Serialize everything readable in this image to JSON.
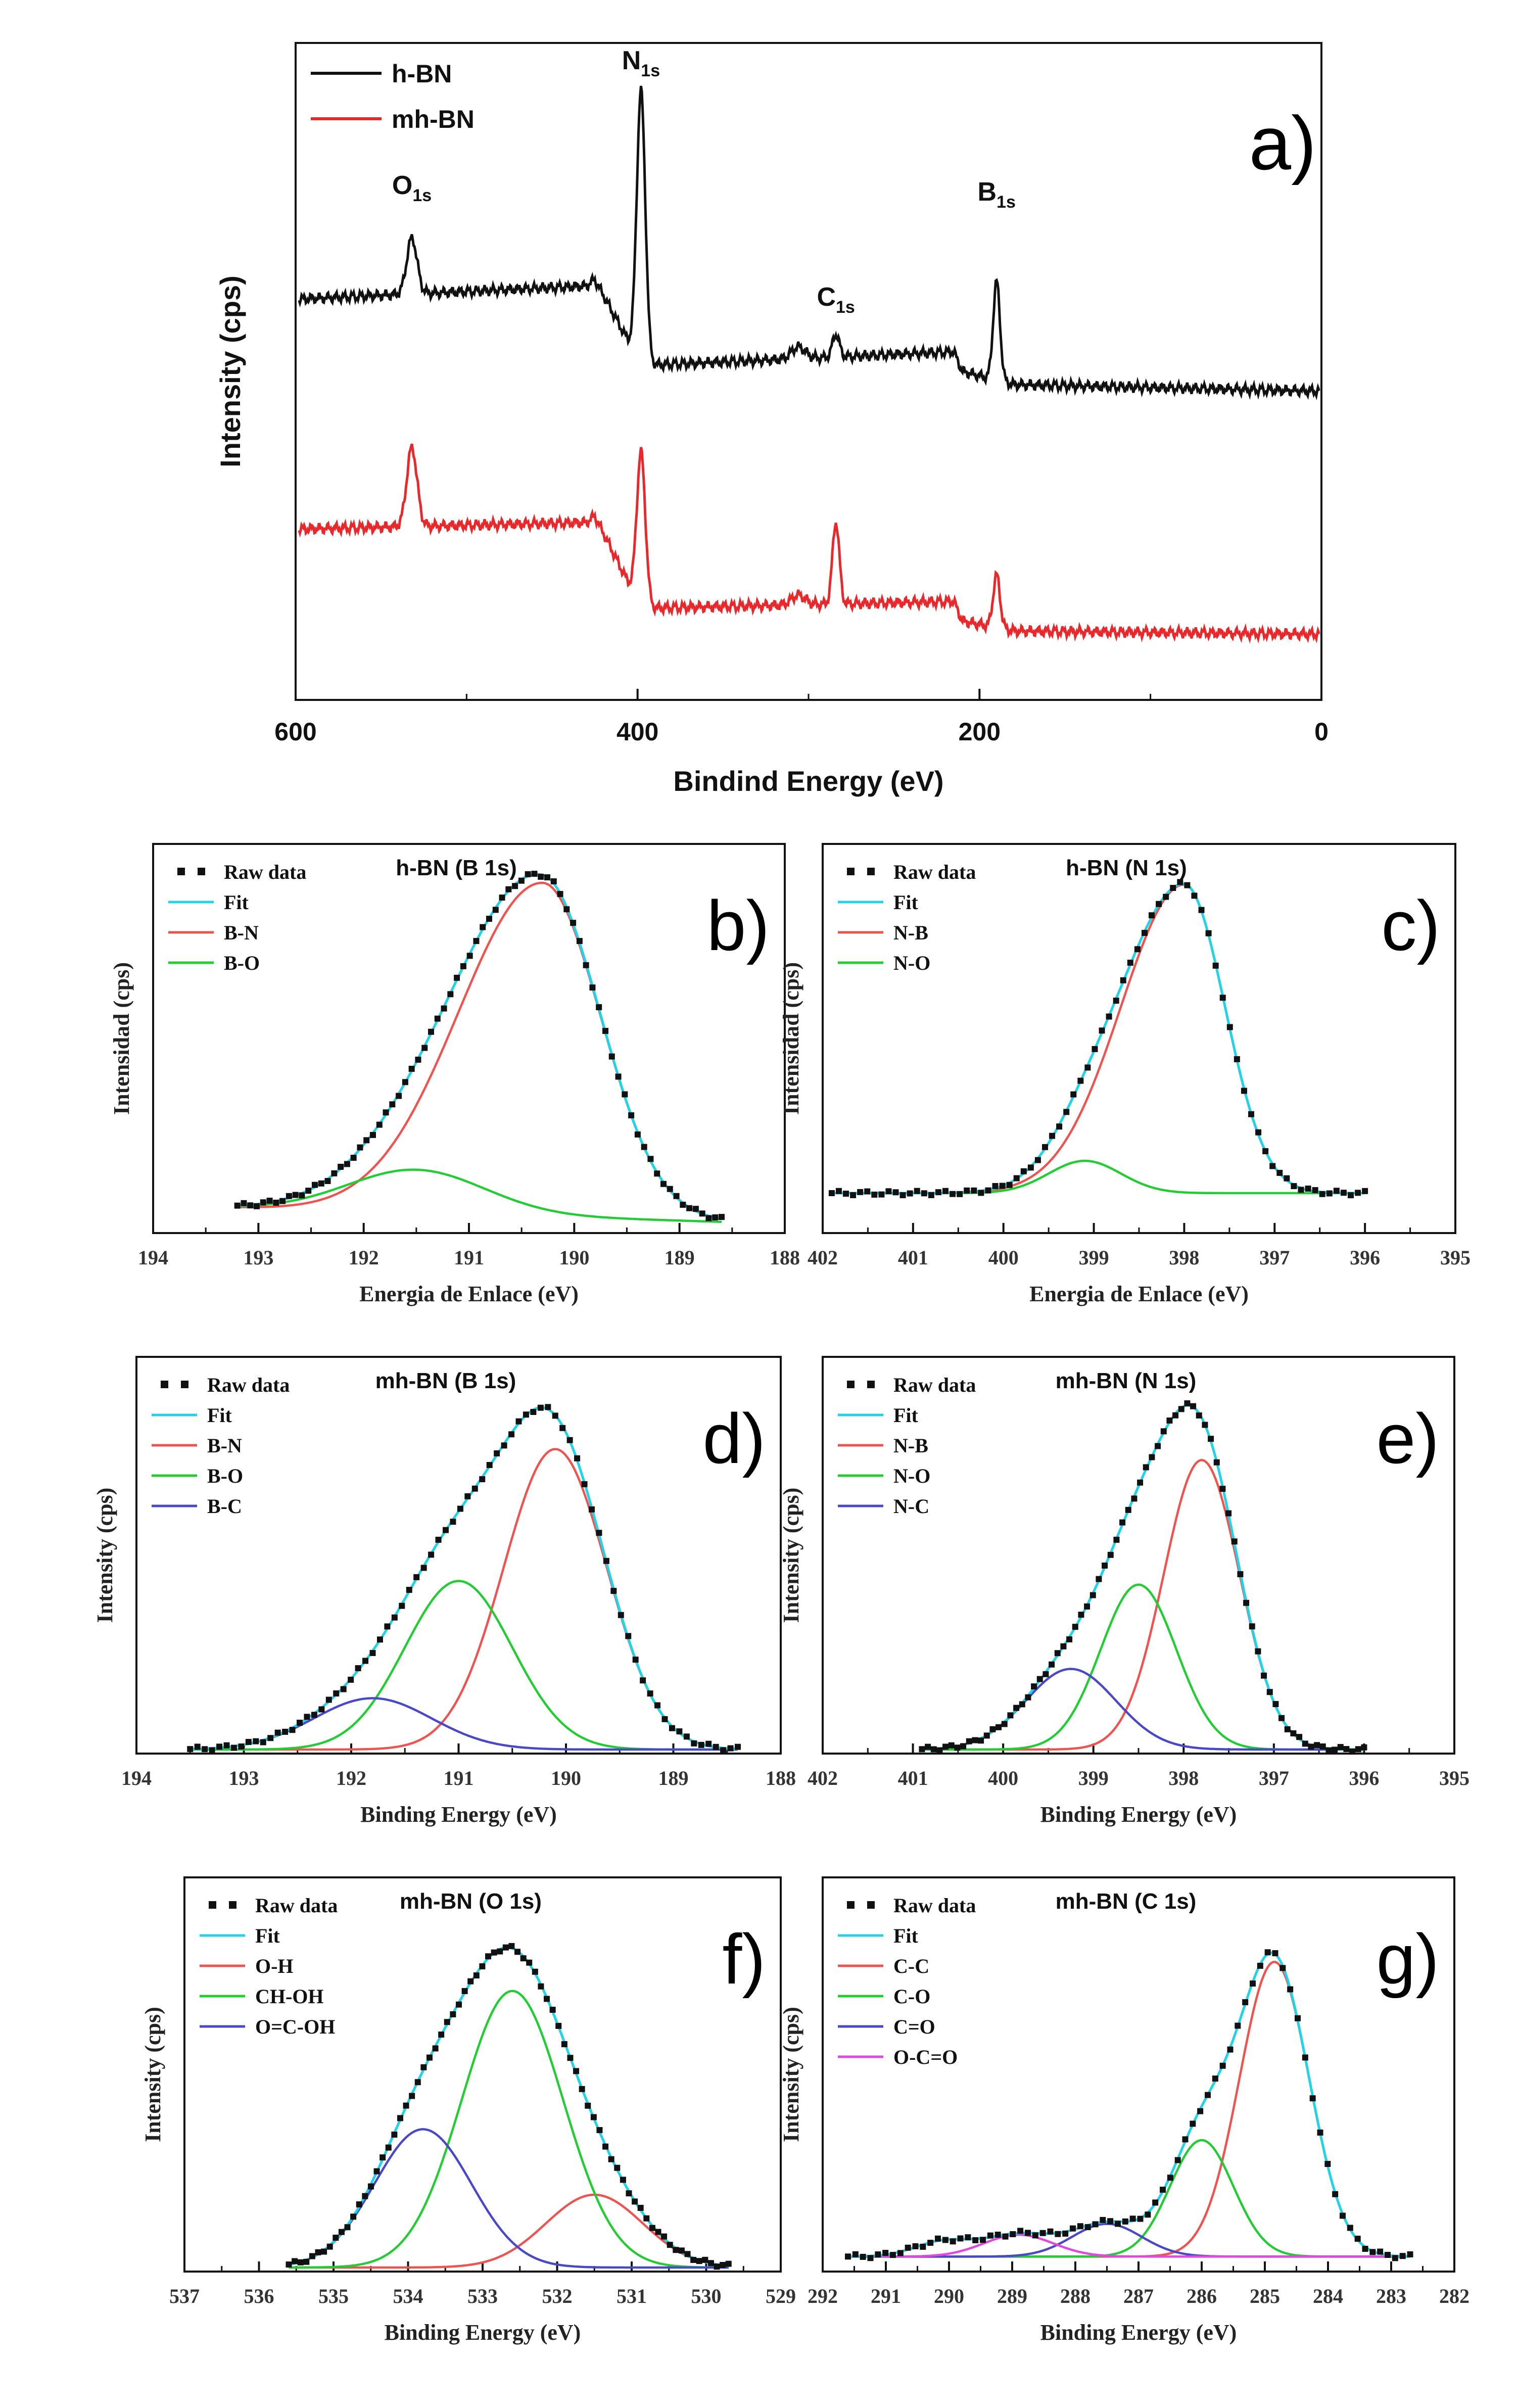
{
  "colors": {
    "black": "#111111",
    "red": "#e8282b",
    "fit": "#22d3e8",
    "comp_red": "#ef5350",
    "comp_green": "#22cc33",
    "comp_blue": "#4848c8",
    "comp_magenta": "#e048e0"
  },
  "chart_data": [
    {
      "id": "a",
      "type": "line",
      "panel_label": "a)",
      "xlabel": "Bindind Energy (eV)",
      "ylabel": "Intensity (cps)",
      "xlim": [
        600,
        0
      ],
      "xticks": [
        600,
        400,
        200,
        0
      ],
      "ylim": [
        0,
        100
      ],
      "series": [
        {
          "name": "h-BN",
          "color": "#111111",
          "baseline": [
            [
              600,
              61
            ],
            [
              430,
              63
            ],
            [
              425,
              64
            ],
            [
              400,
              52
            ],
            [
              390,
              51
            ],
            [
              300,
              52
            ],
            [
              215,
              53
            ],
            [
              210,
              50
            ],
            [
              180,
              48
            ],
            [
              0,
              47
            ]
          ],
          "peaks": [
            [
              532,
              8.5,
              3
            ],
            [
              398,
              41,
              2.5
            ],
            [
              306,
              1.8,
              4
            ],
            [
              284,
              3.5,
              2
            ],
            [
              190,
              15,
              2
            ]
          ]
        },
        {
          "name": "mh-BN",
          "color": "#e8282b",
          "baseline": [
            [
              600,
              26
            ],
            [
              430,
              27
            ],
            [
              425,
              28
            ],
            [
              400,
              15
            ],
            [
              390,
              14
            ],
            [
              300,
              14.5
            ],
            [
              215,
              15
            ],
            [
              210,
              12
            ],
            [
              180,
              10.5
            ],
            [
              0,
              10
            ]
          ],
          "peaks": [
            [
              532,
              12,
              3
            ],
            [
              398,
              23,
              2.5
            ],
            [
              306,
              1.5,
              4
            ],
            [
              284,
              12.5,
              2
            ],
            [
              190,
              8,
              2
            ]
          ]
        }
      ],
      "annotations": [
        {
          "base": "O",
          "sub": "1s",
          "x": 532,
          "y": 77
        },
        {
          "base": "N",
          "sub": "1s",
          "x": 398,
          "y": 96
        },
        {
          "base": "C",
          "sub": "1s",
          "x": 284,
          "y": 60
        },
        {
          "base": "B",
          "sub": "1s",
          "x": 190,
          "y": 76
        }
      ]
    },
    {
      "id": "b",
      "type": "line",
      "panel_label": "b)",
      "title": "h-BN (B 1s)",
      "xlabel": "Energia de Enlace (eV)",
      "ylabel": "Intensidad (cps)",
      "xlim": [
        194,
        188
      ],
      "xticks": [
        194,
        193,
        192,
        191,
        190,
        189,
        188
      ],
      "ylim": [
        0,
        100
      ],
      "data_range": [
        193.2,
        188.6
      ],
      "background": [
        6,
        2
      ],
      "components": [
        {
          "name": "B-N",
          "color": "#ef5350",
          "center": 190.3,
          "amp": 93,
          "sigma": 0.55,
          "tail": 0.45
        },
        {
          "name": "B-O",
          "color": "#22cc33",
          "center": 191.5,
          "amp": 12,
          "sigma": 0.65,
          "tail": 0
        }
      ],
      "legend": [
        "Raw data",
        "Fit",
        "B-N",
        "B-O"
      ]
    },
    {
      "id": "c",
      "type": "line",
      "panel_label": "c)",
      "title": "h-BN (N 1s)",
      "xlabel": "Energia de Enlace (eV)",
      "ylabel": "Intensidad (cps)",
      "xlim": [
        402,
        395
      ],
      "xticks": [
        402,
        401,
        400,
        399,
        398,
        397,
        396,
        395
      ],
      "ylim": [
        0,
        100
      ],
      "data_range": [
        401.9,
        396
      ],
      "background": [
        10,
        10
      ],
      "components": [
        {
          "name": "N-B",
          "color": "#ef5350",
          "center": 398.0,
          "amp": 86,
          "sigma": 0.45,
          "tail": 0.55
        },
        {
          "name": "N-O",
          "color": "#22cc33",
          "center": 399.1,
          "amp": 9,
          "sigma": 0.4,
          "tail": 0
        }
      ],
      "legend": [
        "Raw data",
        "Fit",
        "N-B",
        "N-O"
      ]
    },
    {
      "id": "d",
      "type": "line",
      "panel_label": "d)",
      "title": "mh-BN (B 1s)",
      "xlabel": "Binding Energy (eV)",
      "ylabel": "Intensity (cps)",
      "xlim": [
        194,
        188
      ],
      "xticks": [
        194,
        193,
        192,
        191,
        190,
        189,
        188
      ],
      "ylim": [
        0,
        100
      ],
      "data_range": [
        193.5,
        188.4
      ],
      "background": [
        0,
        0
      ],
      "components": [
        {
          "name": "B-N",
          "color": "#ef5350",
          "center": 190.1,
          "amp": 82,
          "sigma": 0.48,
          "tail": 0
        },
        {
          "name": "B-O",
          "color": "#22cc33",
          "center": 191.0,
          "amp": 46,
          "sigma": 0.5,
          "tail": 0
        },
        {
          "name": "B-C",
          "color": "#4848c8",
          "center": 191.8,
          "amp": 14,
          "sigma": 0.55,
          "tail": 0
        }
      ],
      "legend": [
        "Raw data",
        "Fit",
        "B-N",
        "B-O",
        "B-C"
      ]
    },
    {
      "id": "e",
      "type": "line",
      "panel_label": "e)",
      "title": "mh-BN (N 1s)",
      "xlabel": "Binding Energy (eV)",
      "ylabel": "Intensity (cps)",
      "xlim": [
        402,
        395
      ],
      "xticks": [
        402,
        401,
        400,
        399,
        398,
        397,
        396,
        395
      ],
      "ylim": [
        0,
        100
      ],
      "data_range": [
        400.9,
        396
      ],
      "background": [
        0,
        0
      ],
      "components": [
        {
          "name": "N-B",
          "color": "#ef5350",
          "center": 397.8,
          "amp": 79,
          "sigma": 0.42,
          "tail": 0
        },
        {
          "name": "N-O",
          "color": "#22cc33",
          "center": 398.5,
          "amp": 45,
          "sigma": 0.42,
          "tail": 0
        },
        {
          "name": "N-C",
          "color": "#4848c8",
          "center": 399.25,
          "amp": 22,
          "sigma": 0.5,
          "tail": 0
        }
      ],
      "legend": [
        "Raw data",
        "Fit",
        "N-B",
        "N-O",
        "N-C"
      ]
    },
    {
      "id": "f",
      "type": "line",
      "panel_label": "f)",
      "title": "mh-BN (O 1s)",
      "xlabel": "Binding Energy (eV)",
      "ylabel": "Intensity (cps)",
      "xlim": [
        537,
        529
      ],
      "xticks": [
        537,
        536,
        535,
        534,
        533,
        532,
        531,
        530,
        529
      ],
      "ylim": [
        0,
        100
      ],
      "data_range": [
        535.6,
        529.7
      ],
      "background": [
        0,
        0
      ],
      "components": [
        {
          "name": "O-H",
          "color": "#ef5350",
          "center": 531.5,
          "amp": 20,
          "sigma": 0.65,
          "tail": 0
        },
        {
          "name": "CH-OH",
          "color": "#22cc33",
          "center": 532.6,
          "amp": 76,
          "sigma": 0.68,
          "tail": 0
        },
        {
          "name": "O=C-OH",
          "color": "#4848c8",
          "center": 533.8,
          "amp": 38,
          "sigma": 0.65,
          "tail": 0
        }
      ],
      "legend": [
        "Raw data",
        "Fit",
        "O-H",
        "CH-OH",
        "O=C-OH"
      ]
    },
    {
      "id": "g",
      "type": "line",
      "panel_label": "g)",
      "title": "mh-BN (C 1s)",
      "xlabel": "Binding Energy (eV)",
      "ylabel": "Intensity (cps)",
      "xlim": [
        292,
        282
      ],
      "xticks": [
        292,
        291,
        290,
        289,
        288,
        287,
        286,
        285,
        284,
        283,
        282
      ],
      "ylim": [
        0,
        100
      ],
      "data_range": [
        291.6,
        282.7
      ],
      "background": [
        3,
        3
      ],
      "components": [
        {
          "name": "C-C",
          "color": "#ef5350",
          "center": 284.85,
          "amp": 81,
          "sigma": 0.55,
          "tail": 0
        },
        {
          "name": "C-O",
          "color": "#22cc33",
          "center": 286.0,
          "amp": 32,
          "sigma": 0.5,
          "tail": 0
        },
        {
          "name": "C=O",
          "color": "#4848c8",
          "center": 287.5,
          "amp": 9,
          "sigma": 0.55,
          "tail": 0
        },
        {
          "name": "O-C=O",
          "color": "#e048e0",
          "center": 288.9,
          "amp": 6,
          "sigma": 0.55,
          "tail": 0
        },
        {
          "name": "",
          "color": "#111111",
          "center": 290.1,
          "amp": 4,
          "sigma": 0.45,
          "tail": 0,
          "hidden": true
        }
      ],
      "legend": [
        "Raw data",
        "Fit",
        "C-C",
        "C-O",
        "C=O",
        "O-C=O"
      ]
    }
  ]
}
